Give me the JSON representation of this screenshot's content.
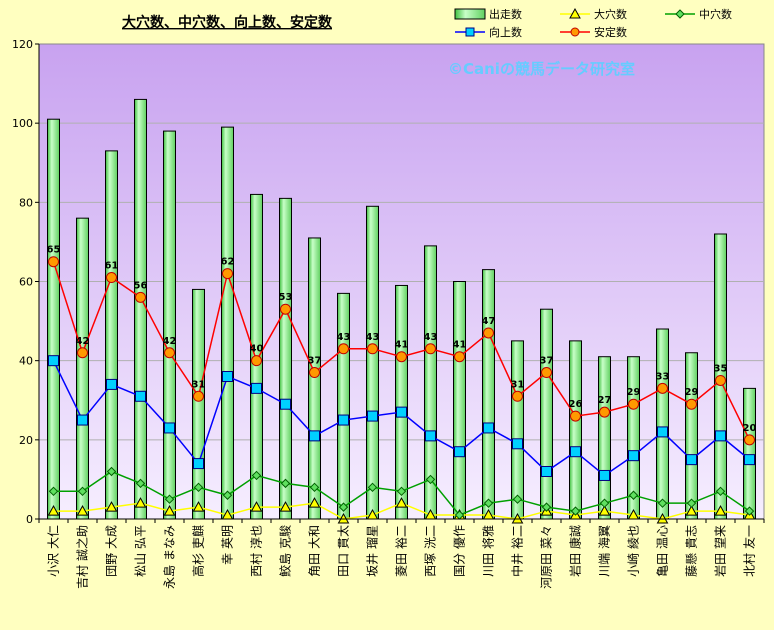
{
  "chart_data": {
    "type": "bar",
    "title": "大穴数、中穴数、向上数、安定数",
    "watermark": "©Caniの競馬データ研究室",
    "categories": [
      "小沢 大仁",
      "吉村 誠之助",
      "団野 大成",
      "松山 弘平",
      "永島 まなみ",
      "高杉 吏麒",
      "幸 英明",
      "西村 淳也",
      "鮫島 克駿",
      "角田 大和",
      "田口 貫太",
      "坂井 瑠星",
      "菱田 裕二",
      "西塚 洸二",
      "国分 優作",
      "川田 将雅",
      "中井 裕二",
      "河原田 菜々",
      "岩田 康誠",
      "川端 海翼",
      "小崎 綾也",
      "亀田 温心",
      "藤懸 貴志",
      "岩田 望来",
      "北村 友一"
    ],
    "series": [
      {
        "name": "出走数",
        "type": "bar",
        "color": "#80FF80",
        "values": [
          101,
          76,
          93,
          106,
          98,
          58,
          99,
          82,
          81,
          71,
          57,
          79,
          59,
          69,
          60,
          63,
          45,
          53,
          45,
          41,
          41,
          48,
          42,
          72,
          33
        ]
      },
      {
        "name": "大穴数",
        "type": "line",
        "color": "#FFFF00",
        "values": [
          2,
          2,
          3,
          4,
          2,
          3,
          1,
          3,
          3,
          4,
          0,
          1,
          4,
          1,
          1,
          1,
          0,
          2,
          1,
          2,
          1,
          0,
          2,
          2,
          1
        ]
      },
      {
        "name": "中穴数",
        "type": "line",
        "color": "#008000",
        "values": [
          7,
          7,
          12,
          9,
          5,
          8,
          6,
          11,
          9,
          8,
          3,
          8,
          7,
          10,
          1,
          4,
          5,
          3,
          2,
          4,
          6,
          4,
          4,
          7,
          2
        ]
      },
      {
        "name": "向上数",
        "type": "line",
        "color": "#0000FF",
        "values": [
          40,
          25,
          34,
          31,
          23,
          14,
          36,
          33,
          29,
          21,
          25,
          26,
          27,
          21,
          17,
          23,
          19,
          12,
          17,
          11,
          16,
          22,
          15,
          21,
          15
        ]
      },
      {
        "name": "安定数",
        "type": "line",
        "color": "#FF0000",
        "values": [
          65,
          42,
          61,
          56,
          42,
          31,
          62,
          40,
          53,
          37,
          43,
          43,
          41,
          43,
          41,
          47,
          31,
          37,
          26,
          27,
          29,
          33,
          29,
          35,
          20
        ]
      }
    ],
    "ylim": [
      0,
      120
    ],
    "yticks": [
      0,
      20,
      40,
      60,
      80,
      100,
      120
    ],
    "grid": true,
    "legend_position": "top-right"
  }
}
